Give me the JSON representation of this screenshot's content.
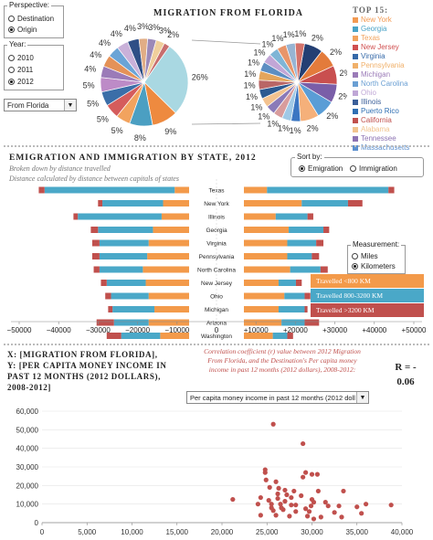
{
  "perspective": {
    "title": "Perspective:",
    "options": [
      {
        "label": "Destination",
        "selected": false
      },
      {
        "label": "Origin",
        "selected": true
      }
    ]
  },
  "year": {
    "title": "Year:",
    "options": [
      {
        "label": "2010",
        "selected": false
      },
      {
        "label": "2011",
        "selected": false
      },
      {
        "label": "2012",
        "selected": true
      }
    ]
  },
  "state_select": {
    "value": "From Florida"
  },
  "pie_section": {
    "title": "MIGRATION FROM FLORIDA",
    "main_pie": [
      {
        "label": "26%",
        "value": 26,
        "color": "#a9d8e2"
      },
      {
        "label": "9%",
        "value": 9,
        "color": "#ee8a3f"
      },
      {
        "label": "8%",
        "value": 8,
        "color": "#4b9fc2"
      },
      {
        "label": "5%",
        "value": 5,
        "color": "#f2a35e"
      },
      {
        "label": "5%",
        "value": 5,
        "color": "#d55c5c"
      },
      {
        "label": "5%",
        "value": 5,
        "color": "#3b6ea8"
      },
      {
        "label": "5%",
        "value": 5,
        "color": "#bd8bc7"
      },
      {
        "label": "4%",
        "value": 4,
        "color": "#9b7bb8"
      },
      {
        "label": "4%",
        "value": 4,
        "color": "#e49258"
      },
      {
        "label": "4%",
        "value": 4,
        "color": "#6aa4d6"
      },
      {
        "label": "4%",
        "value": 4,
        "color": "#c9b1d9"
      },
      {
        "label": "4%",
        "value": 4,
        "color": "#2f4f86"
      },
      {
        "label": "3%",
        "value": 3,
        "color": "#e1ad85"
      },
      {
        "label": "3%",
        "value": 3,
        "color": "#9c89b8"
      },
      {
        "label": "3%",
        "value": 3,
        "color": "#f0cf9c"
      },
      {
        "label": "2%",
        "value": 2,
        "color": "#c86e6e"
      }
    ],
    "second_pie": [
      {
        "label": "2%",
        "value": 2,
        "color": "#243f73"
      },
      {
        "label": "2%",
        "value": 2,
        "color": "#e37b3b"
      },
      {
        "label": "2%",
        "value": 2,
        "color": "#c94f4f"
      },
      {
        "label": "2%",
        "value": 2,
        "color": "#7a5ea8"
      },
      {
        "label": "2%",
        "value": 2,
        "color": "#5a9dd6"
      },
      {
        "label": "2%",
        "value": 2,
        "color": "#f5b07a"
      },
      {
        "label": "1%",
        "value": 1,
        "color": "#3b76c2"
      },
      {
        "label": "1%",
        "value": 1,
        "color": "#a0c9e6"
      },
      {
        "label": "1%",
        "value": 1,
        "color": "#d89c9c"
      },
      {
        "label": "1%",
        "value": 1,
        "color": "#8b7ab8"
      },
      {
        "label": "1%",
        "value": 1,
        "color": "#f3c28f"
      },
      {
        "label": "1%",
        "value": 1,
        "color": "#2d5a91"
      },
      {
        "label": "1%",
        "value": 1,
        "color": "#b96666"
      },
      {
        "label": "1%",
        "value": 1,
        "color": "#e4a55c"
      },
      {
        "label": "1%",
        "value": 1,
        "color": "#5d8ec2"
      },
      {
        "label": "1%",
        "value": 1,
        "color": "#c1a6d6"
      },
      {
        "label": "1%",
        "value": 1,
        "color": "#7fb5d6"
      },
      {
        "label": "1%",
        "value": 1,
        "color": "#e8956a"
      },
      {
        "label": "1%",
        "value": 1,
        "color": "#97b4d3"
      },
      {
        "label": "1%",
        "value": 1,
        "color": "#d4736b"
      }
    ],
    "top15_title": "TOP 15:",
    "top15": [
      {
        "name": "New York",
        "color": "#f39a52"
      },
      {
        "name": "Georgia",
        "color": "#4aa3c7"
      },
      {
        "name": "Texas",
        "color": "#f2a35e"
      },
      {
        "name": "New Jersey",
        "color": "#d04f4f"
      },
      {
        "name": "Virginia",
        "color": "#3569a8"
      },
      {
        "name": "Pennsylvania",
        "color": "#f0b06a"
      },
      {
        "name": "Michigan",
        "color": "#9b7bb8"
      },
      {
        "name": "North Carolina",
        "color": "#6a9fd3"
      },
      {
        "name": "Ohio",
        "color": "#bfa7d6"
      },
      {
        "name": "Illinois",
        "color": "#3b5f99"
      },
      {
        "name": "Puerto Rico",
        "color": "#2f6fb3"
      },
      {
        "name": "California",
        "color": "#c0504d"
      },
      {
        "name": "Alabama",
        "color": "#f1c48f"
      },
      {
        "name": "Tennessee",
        "color": "#8d73b3"
      },
      {
        "name": "Massachusetts",
        "color": "#5b8fcf"
      }
    ]
  },
  "bar_section": {
    "title": "EMIGRATION AND IMMIGRATION BY STATE, 2012",
    "subtitle1": "Broken down by distance travelled",
    "subtitle2": "Distance calculated by distance between capitals of states",
    "sort": {
      "title": "Sort by:",
      "options": [
        {
          "label": "Emigration",
          "selected": true
        },
        {
          "label": "Immigration",
          "selected": false
        }
      ]
    },
    "measurement": {
      "title": "Measurement:",
      "options": [
        {
          "label": "Miles",
          "selected": false
        },
        {
          "label": "Kilometers",
          "selected": true
        }
      ]
    },
    "legend": [
      {
        "label": "Travelled <800 KM",
        "color": "#f39a4a"
      },
      {
        "label": "Travelled 800-3200 KM",
        "color": "#4aa8c8"
      },
      {
        "label": "Travelled >3200 KM",
        "color": "#c0504d"
      }
    ]
  },
  "chart_data": [
    {
      "type": "bar",
      "title": "EMIGRATION AND IMMIGRATION BY STATE, 2012",
      "categories": [
        "Texas",
        "New York",
        "Illinois",
        "Georgia",
        "Virginia",
        "Pennsylvania",
        "North Carolina",
        "New Jersey",
        "Ohio",
        "Michigan",
        "Arizona",
        "Washington"
      ],
      "series": [
        {
          "name": "Travelled <800 KM",
          "left": [
            -5000,
            -9000,
            -9500,
            -12500,
            -14000,
            -14500,
            -16000,
            -15000,
            -14000,
            -12000,
            -14000,
            -10000
          ],
          "right": [
            8000,
            20000,
            11000,
            15500,
            15000,
            15000,
            16000,
            12000,
            14000,
            12000,
            13000,
            10000
          ]
        },
        {
          "name": "Travelled 800-3200 KM",
          "left": [
            -45000,
            -21000,
            -29000,
            -19000,
            -17000,
            -16500,
            -15000,
            -13500,
            -13000,
            -14500,
            -12000,
            -13500
          ],
          "right": [
            42000,
            16000,
            11000,
            12000,
            10000,
            8500,
            10500,
            6000,
            7000,
            9000,
            8000,
            5000
          ]
        },
        {
          "name": "Travelled >3200 KM",
          "left": [
            -2000,
            -1500,
            -1500,
            -2500,
            -2500,
            -2500,
            -2000,
            -2000,
            -2000,
            -1500,
            -6000,
            -5000
          ],
          "right": [
            2000,
            5000,
            2000,
            2000,
            2500,
            2500,
            2500,
            2000,
            2000,
            1000,
            5000,
            2000
          ]
        }
      ],
      "xticks": [
        "−50000",
        "−40000",
        "−30000",
        "−20000",
        "−10000",
        "0",
        "+10000",
        "+20000",
        "+30000",
        "+40000",
        "+50000"
      ],
      "xlim": [
        -50000,
        50000
      ]
    },
    {
      "type": "scatter",
      "title": "X: [MIGRATION FROM FLORIDA], Y: [PER CAPITA MONEY INCOME IN PAST 12 MONTHS (2012 DOLLARS), 2008-2012]",
      "xlim": [
        0,
        40000
      ],
      "ylim": [
        0,
        60000
      ],
      "xticks": [
        "0",
        "5,000",
        "10,000",
        "15,000",
        "20,000",
        "25,000",
        "30,000",
        "35,000",
        "40,000"
      ],
      "yticks": [
        "0",
        "10,000",
        "20,000",
        "30,000",
        "40,000",
        "50,000",
        "60,000"
      ],
      "points": [
        [
          25700,
          53000
        ],
        [
          29000,
          42500
        ],
        [
          24800,
          28500
        ],
        [
          24800,
          27000
        ],
        [
          29300,
          27000
        ],
        [
          30000,
          26000
        ],
        [
          30600,
          26000
        ],
        [
          29000,
          24500
        ],
        [
          24900,
          23000
        ],
        [
          26000,
          22000
        ],
        [
          25300,
          19000
        ],
        [
          26300,
          18500
        ],
        [
          27000,
          17500
        ],
        [
          28000,
          17000
        ],
        [
          30700,
          17000
        ],
        [
          26200,
          15500
        ],
        [
          27200,
          15000
        ],
        [
          28800,
          14500
        ],
        [
          33500,
          17000
        ],
        [
          24300,
          13500
        ],
        [
          26200,
          13000
        ],
        [
          27700,
          13500
        ],
        [
          30000,
          12500
        ],
        [
          21200,
          12500
        ],
        [
          25200,
          12000
        ],
        [
          27000,
          11500
        ],
        [
          30200,
          11000
        ],
        [
          31500,
          11000
        ],
        [
          24000,
          10000
        ],
        [
          25500,
          10000
        ],
        [
          26500,
          10000
        ],
        [
          27700,
          9500
        ],
        [
          28200,
          9500
        ],
        [
          29900,
          9000
        ],
        [
          36000,
          10000
        ],
        [
          38800,
          9500
        ],
        [
          25500,
          8000
        ],
        [
          26600,
          8000
        ],
        [
          29300,
          7500
        ],
        [
          31800,
          9000
        ],
        [
          33000,
          9000
        ],
        [
          35000,
          8500
        ],
        [
          25700,
          6500
        ],
        [
          26800,
          7000
        ],
        [
          28200,
          6000
        ],
        [
          29700,
          6000
        ],
        [
          32500,
          5500
        ],
        [
          35500,
          5000
        ],
        [
          24300,
          4000
        ],
        [
          26000,
          4000
        ],
        [
          27500,
          3500
        ],
        [
          29500,
          3500
        ],
        [
          31000,
          3000
        ],
        [
          33300,
          3000
        ],
        [
          30200,
          2000
        ]
      ]
    }
  ],
  "scatter_section": {
    "title_line1": "X: [MIGRATION FROM FLORIDA],",
    "title_line2": "Y: [PER CAPITA MONEY INCOME IN",
    "title_line3": "PAST 12 MONTHS (2012 DOLLARS),",
    "title_line4": "2008-2012]",
    "corr_text": "Correlation coefficient (r) value between 2012 Migration From Florida, and the Destination's Per capita money income in past 12 months (2012 dollars), 2008-2012:",
    "r_label": "R = -",
    "r_value": "0.06",
    "metric_select": "Per capita money income in past 12 months (2012 doll",
    "point_color": "#c0504d"
  }
}
